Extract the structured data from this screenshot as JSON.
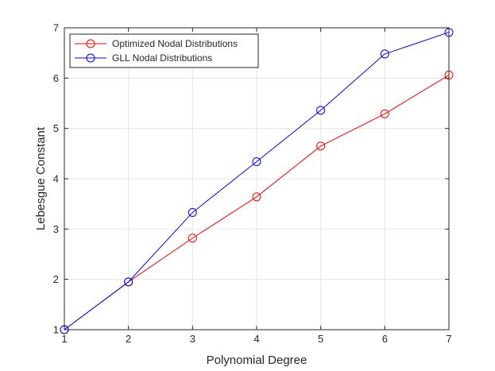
{
  "chart_data": {
    "type": "line",
    "title": "",
    "xlabel": "Polynomial Degree",
    "ylabel": "Lebesgue Constant",
    "xlim": [
      1,
      7
    ],
    "ylim": [
      1,
      7
    ],
    "xticks": [
      "1",
      "2",
      "3",
      "4",
      "5",
      "6",
      "7"
    ],
    "yticks": [
      "1",
      "2",
      "3",
      "4",
      "5",
      "6",
      "7"
    ],
    "grid": true,
    "legend_position": "top-left",
    "x": [
      1,
      2,
      3,
      4,
      5,
      6,
      7
    ],
    "series": [
      {
        "name": "Optimized Nodal Distributions",
        "color": "#ff0000",
        "marker": "circle",
        "values": [
          1.0,
          1.95,
          2.82,
          3.64,
          4.65,
          5.29,
          6.06
        ]
      },
      {
        "name": "GLL Nodal Distributions",
        "color": "#0000ff",
        "marker": "circle",
        "values": [
          1.0,
          1.95,
          3.33,
          4.34,
          5.36,
          6.48,
          6.91
        ]
      }
    ]
  }
}
